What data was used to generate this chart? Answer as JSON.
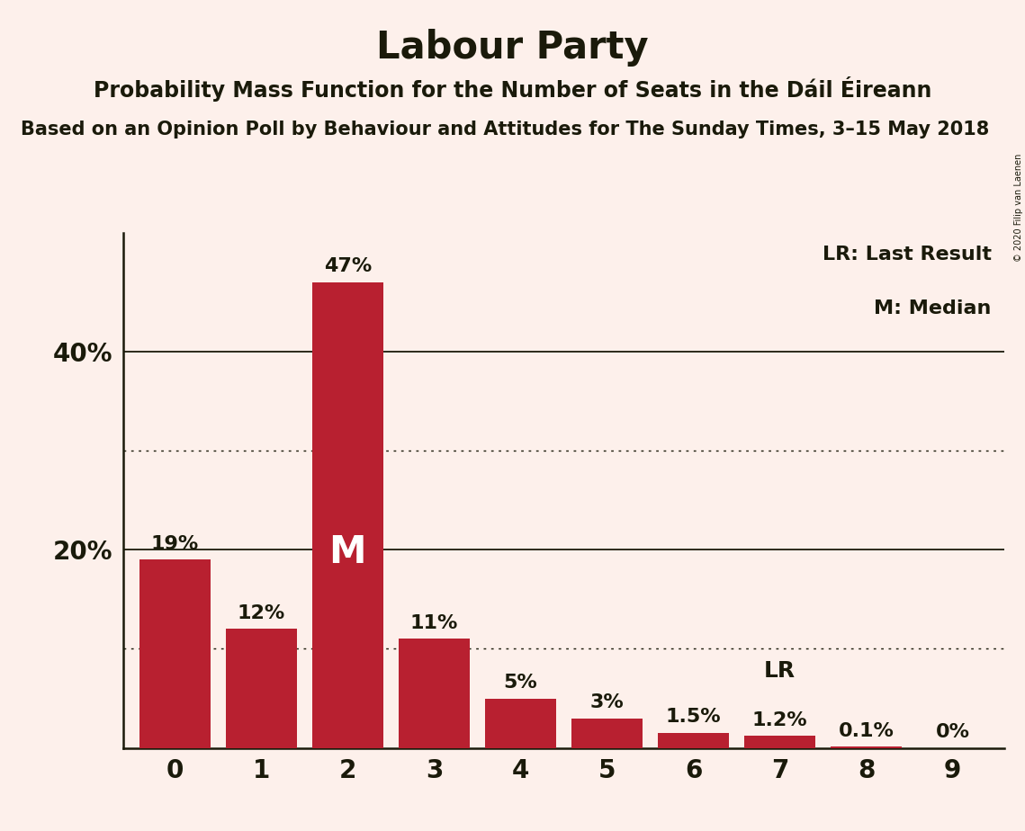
{
  "title": "Labour Party",
  "subtitle": "Probability Mass Function for the Number of Seats in the Dáil Éireann",
  "source": "Based on an Opinion Poll by Behaviour and Attitudes for The Sunday Times, 3–15 May 2018",
  "copyright": "© 2020 Filip van Laenen",
  "categories": [
    0,
    1,
    2,
    3,
    4,
    5,
    6,
    7,
    8,
    9
  ],
  "values": [
    19,
    12,
    47,
    11,
    5,
    3,
    1.5,
    1.2,
    0.1,
    0
  ],
  "bar_color": "#b82030",
  "background_color": "#fdf0eb",
  "text_color": "#1a1a0a",
  "bar_labels": [
    "19%",
    "12%",
    "47%",
    "11%",
    "5%",
    "3%",
    "1.5%",
    "1.2%",
    "0.1%",
    "0%"
  ],
  "median_bar": 2,
  "lr_bar": 7,
  "ylim": [
    0,
    52
  ],
  "solid_gridlines": [
    20,
    40
  ],
  "dotted_gridlines": [
    10,
    30
  ],
  "legend_lr": "LR: Last Result",
  "legend_m": "M: Median",
  "ytick_values": [
    20,
    40
  ],
  "ytick_labels": [
    "20%",
    "40%"
  ],
  "title_fontsize": 30,
  "subtitle_fontsize": 17,
  "source_fontsize": 15,
  "label_fontsize": 16,
  "tick_fontsize": 20,
  "legend_fontsize": 16,
  "median_fontsize": 30,
  "lr_fontsize": 18
}
